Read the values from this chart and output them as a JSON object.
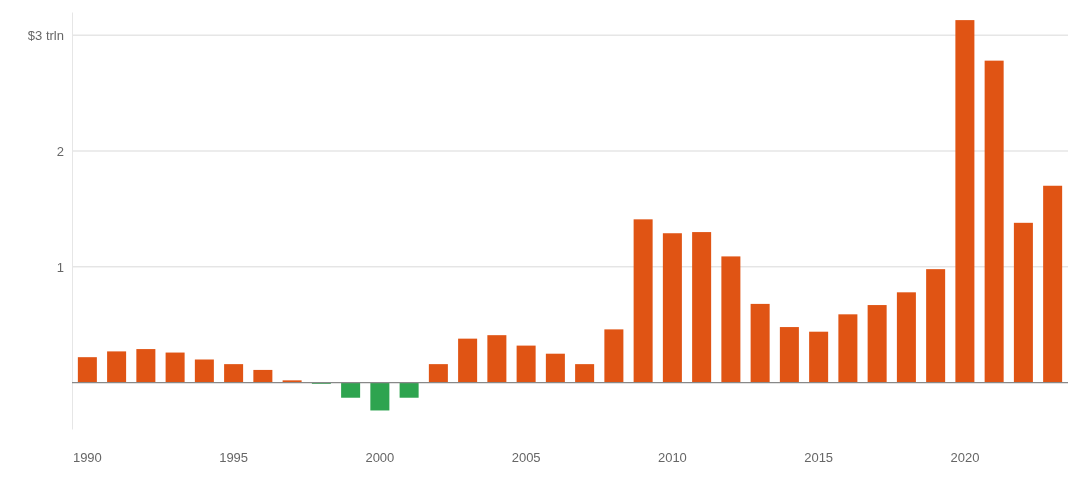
{
  "chart_data": {
    "type": "bar",
    "categories": [
      "1990",
      null,
      null,
      null,
      null,
      "1995",
      null,
      null,
      null,
      null,
      "2000",
      null,
      null,
      null,
      null,
      "2005",
      null,
      null,
      null,
      null,
      "2010",
      null,
      null,
      null,
      null,
      "2015",
      null,
      null,
      null,
      null,
      "2020",
      null,
      null,
      null
    ],
    "values": [
      0.22,
      0.27,
      0.29,
      0.26,
      0.2,
      0.16,
      0.11,
      0.02,
      -0.01,
      -0.13,
      -0.24,
      -0.13,
      0.16,
      0.38,
      0.41,
      0.32,
      0.25,
      0.16,
      0.46,
      1.41,
      1.29,
      1.3,
      1.09,
      0.68,
      0.48,
      0.44,
      0.59,
      0.67,
      0.78,
      0.98,
      3.13,
      2.78,
      1.38,
      1.7
    ],
    "colors": [
      "#e05414",
      "#e05414",
      "#e05414",
      "#e05414",
      "#e05414",
      "#e05414",
      "#e05414",
      "#e05414",
      "#2ea44f",
      "#2ea44f",
      "#2ea44f",
      "#2ea44f",
      "#e05414",
      "#e05414",
      "#e05414",
      "#e05414",
      "#e05414",
      "#e05414",
      "#e05414",
      "#e05414",
      "#e05414",
      "#e05414",
      "#e05414",
      "#e05414",
      "#e05414",
      "#e05414",
      "#e05414",
      "#e05414",
      "#e05414",
      "#e05414",
      "#e05414",
      "#e05414",
      "#e05414",
      "#e05414"
    ],
    "ylim": [
      -0.4,
      3.2
    ],
    "yticks": [
      {
        "value": 0,
        "label": null
      },
      {
        "value": 1,
        "label": "1"
      },
      {
        "value": 2,
        "label": "2"
      },
      {
        "value": 3,
        "label": "$3 trln"
      }
    ],
    "grid": "y"
  }
}
